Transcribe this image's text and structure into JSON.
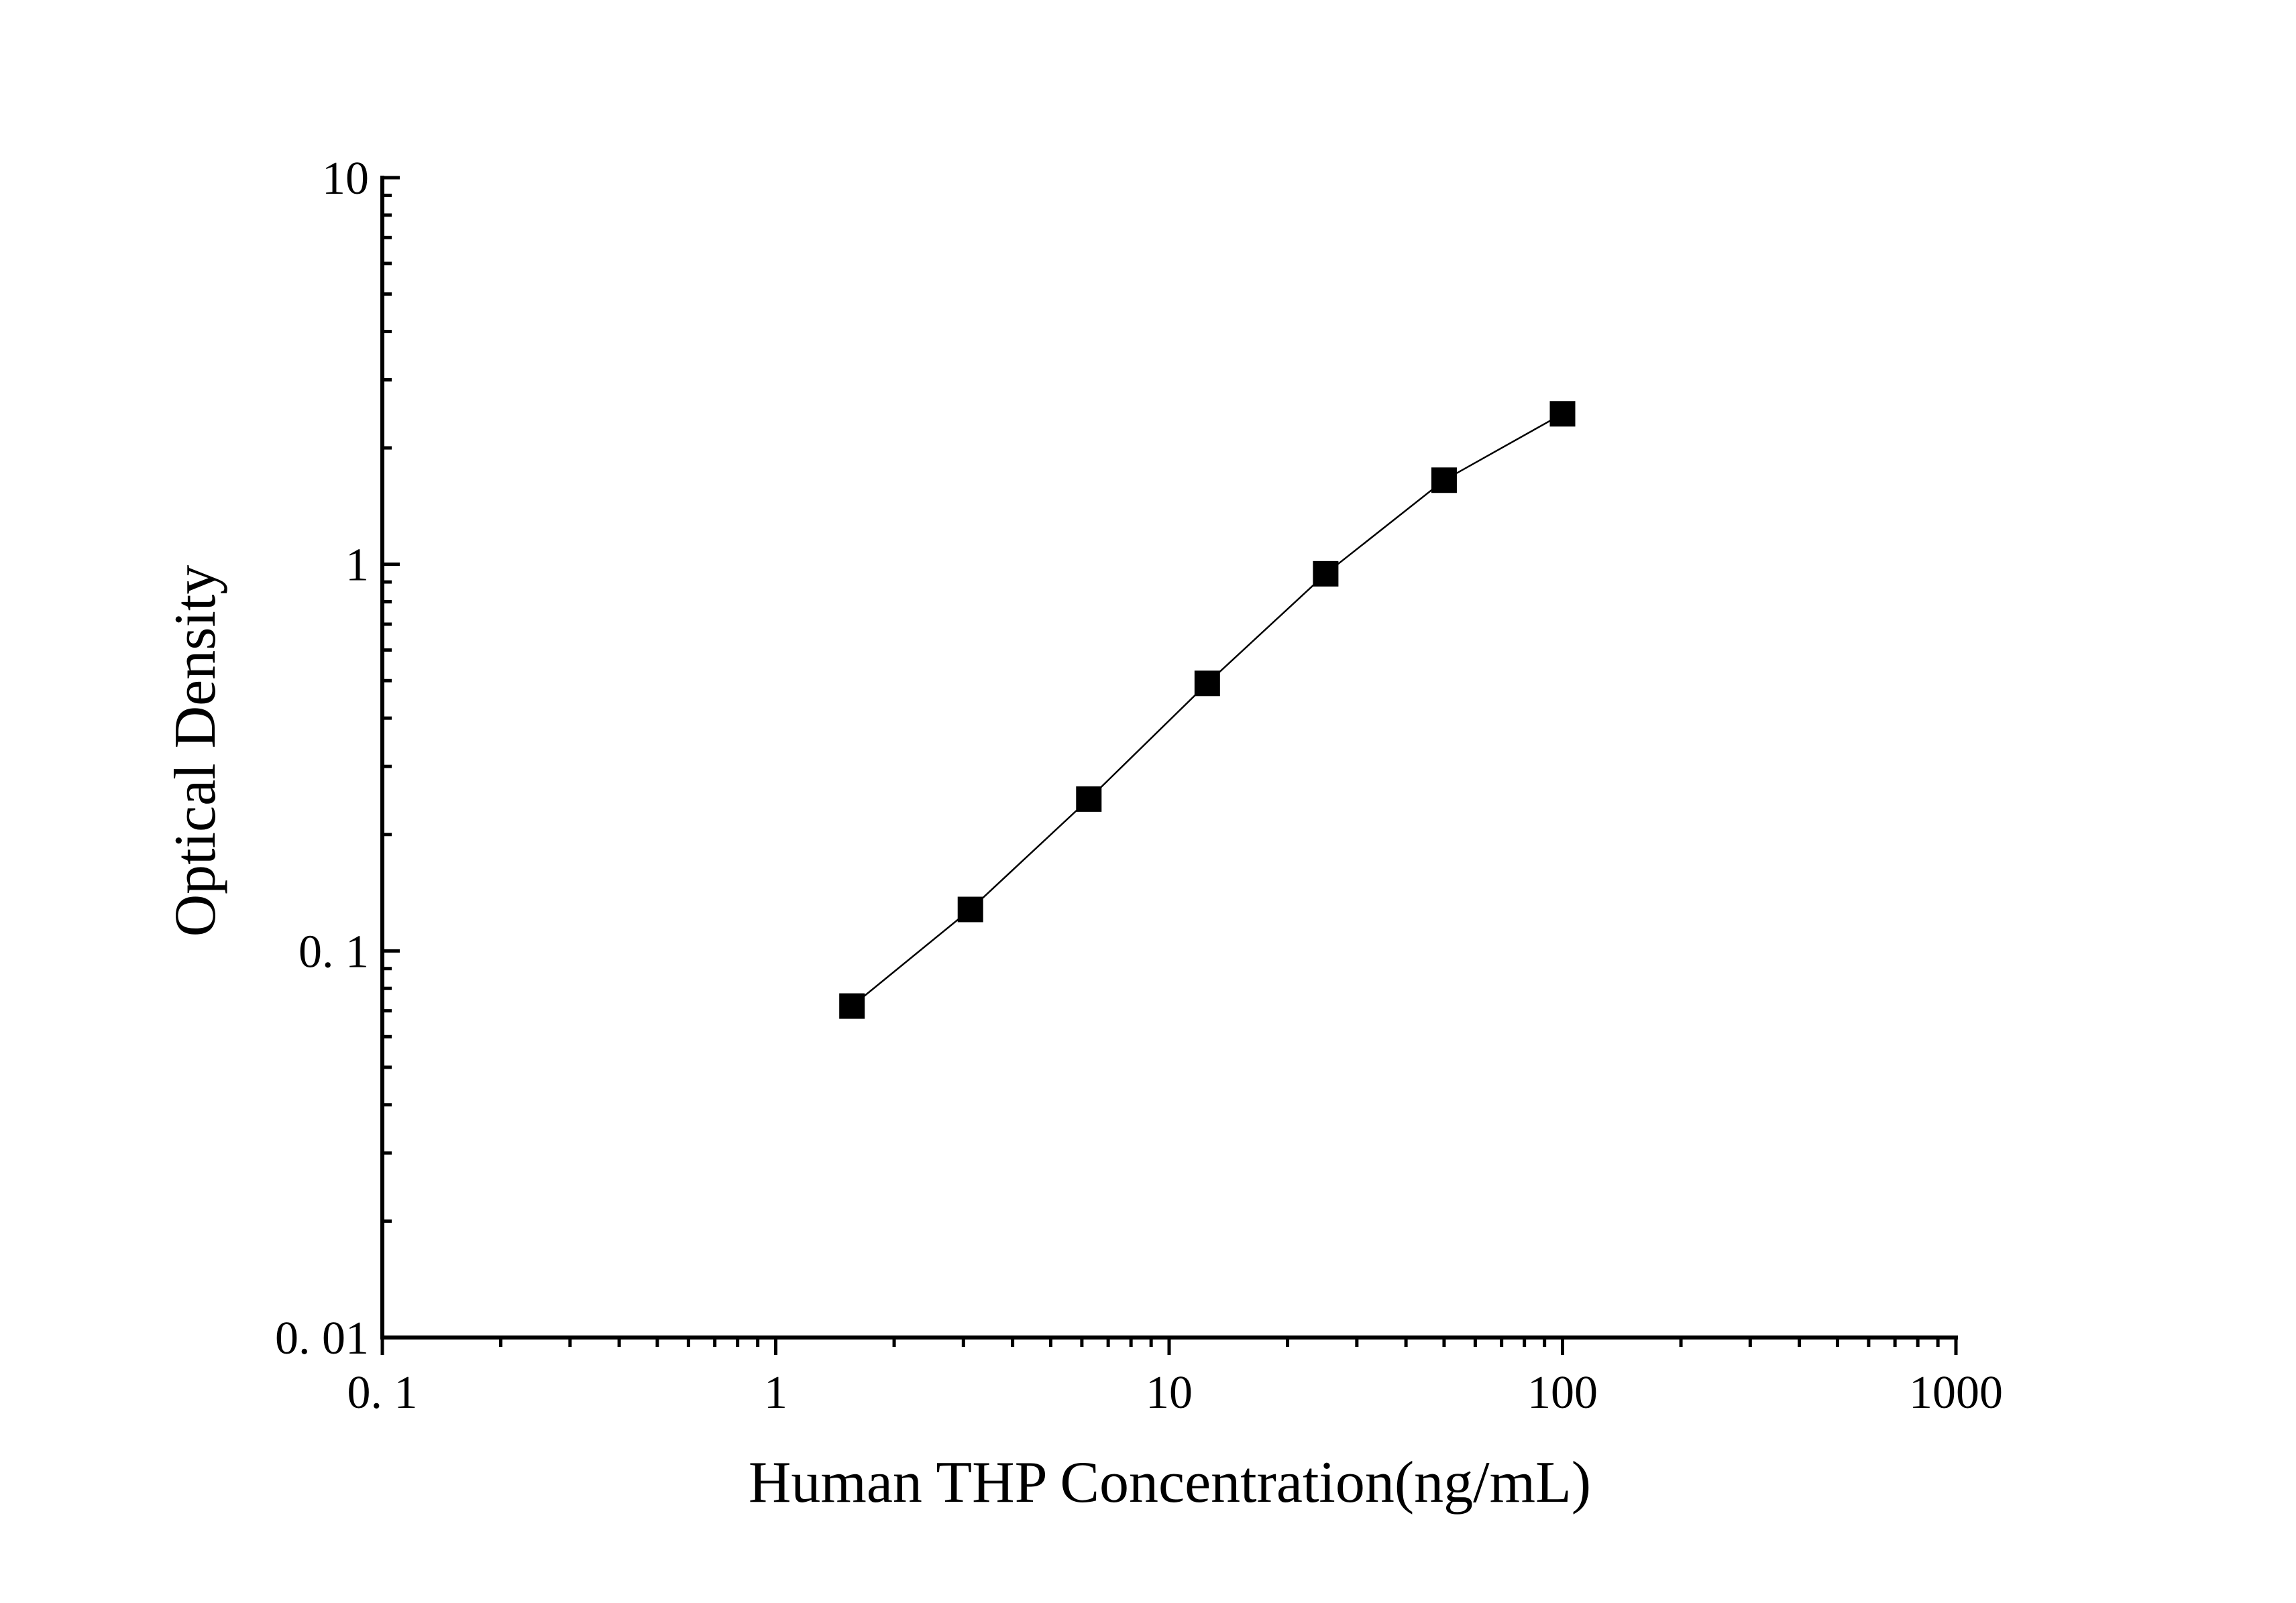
{
  "chart_data": {
    "type": "scatter",
    "title": "",
    "xlabel": "Human THP Concentration(ng/mL)",
    "ylabel": "Optical Density",
    "xscale": "log",
    "yscale": "log",
    "xlim": [
      0.1,
      1000
    ],
    "ylim": [
      0.01,
      10
    ],
    "x_ticks": [
      0.1,
      1,
      10,
      100,
      1000
    ],
    "x_tick_labels": [
      "0. 1",
      "1",
      "10",
      "100",
      "1000"
    ],
    "y_ticks": [
      0.01,
      0.1,
      1,
      10
    ],
    "y_tick_labels": [
      "0. 01",
      "0. 1",
      "1",
      "10"
    ],
    "grid": false,
    "legend": "none",
    "series": [
      {
        "marker": "square",
        "color": "#000000",
        "connected": true,
        "x": [
          1.5625,
          3.125,
          6.25,
          12.5,
          25,
          50,
          100
        ],
        "y": [
          0.072,
          0.128,
          0.247,
          0.492,
          0.945,
          1.65,
          2.45
        ]
      }
    ]
  }
}
